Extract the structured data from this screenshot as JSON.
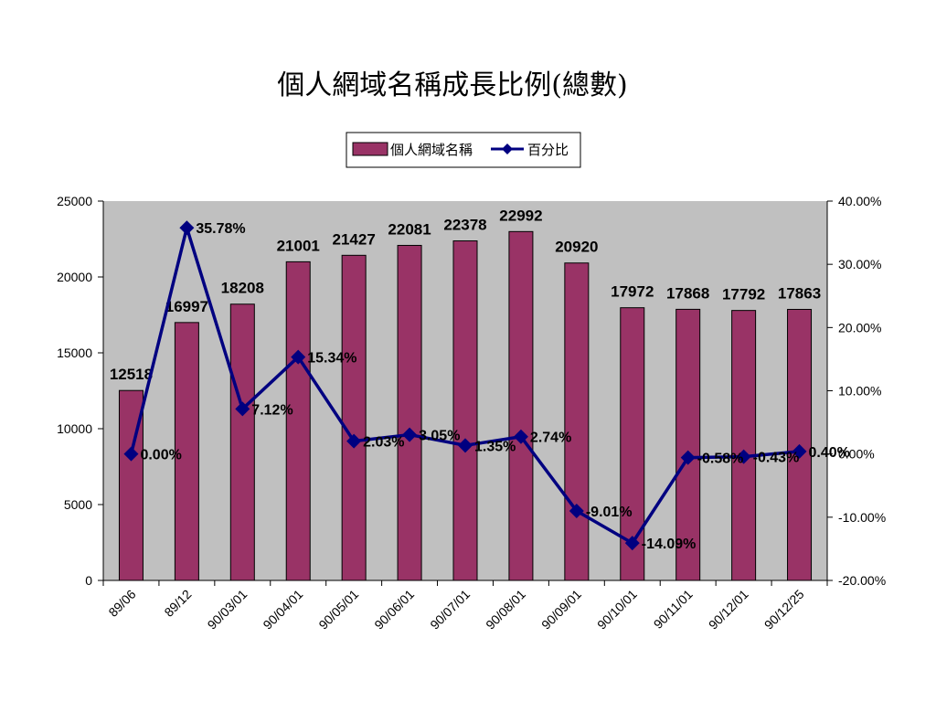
{
  "chart_data": {
    "type": "bar",
    "title": "個人網域名稱成長比例(總數)",
    "categories": [
      "89/06",
      "89/12",
      "90/03/01",
      "90/04/01",
      "90/05/01",
      "90/06/01",
      "90/07/01",
      "90/08/01",
      "90/09/01",
      "90/10/01",
      "90/11/01",
      "90/12/01",
      "90/12/25"
    ],
    "series": [
      {
        "name": "個人網域名稱",
        "type": "bar",
        "axis": "left",
        "values": [
          12518,
          16997,
          18208,
          21001,
          21427,
          22081,
          22378,
          22992,
          20920,
          17972,
          17868,
          17792,
          17863
        ],
        "labels": [
          "12518",
          "16997",
          "18208",
          "21001",
          "21427",
          "22081",
          "22378",
          "22992",
          "20920",
          "17972",
          "17868",
          "17792",
          "17863"
        ],
        "color": "#993366"
      },
      {
        "name": "百分比",
        "type": "line",
        "axis": "right",
        "values": [
          0.0,
          35.78,
          7.12,
          15.34,
          2.03,
          3.05,
          1.35,
          2.74,
          -9.01,
          -14.09,
          -0.58,
          -0.43,
          0.4
        ],
        "labels": [
          "0.00%",
          "35.78%",
          "7.12%",
          "15.34%",
          "2.03%",
          "3.05%",
          "1.35%",
          "2.74%",
          "-9.01%",
          "-14.09%",
          "-0.58%",
          "-0.43%",
          "0.40%"
        ],
        "color": "#000080"
      }
    ],
    "y_left": {
      "min": 0,
      "max": 25000,
      "ticks": [
        "0",
        "5000",
        "10000",
        "15000",
        "20000",
        "25000"
      ]
    },
    "y_right": {
      "min": -20,
      "max": 40,
      "ticks": [
        "-20.00%",
        "-10.00%",
        "0.00%",
        "10.00%",
        "20.00%",
        "30.00%",
        "40.00%"
      ]
    },
    "xlabel": "",
    "ylabel": "",
    "grid": false,
    "plot_background": "#c0c0c0",
    "legend_position": "top-center"
  }
}
